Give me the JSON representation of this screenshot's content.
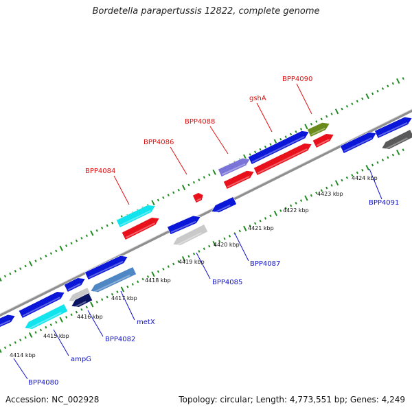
{
  "title": "Bordetella parapertussis 12822, complete genome",
  "footer": {
    "accession": "Accession: NC_002928",
    "topology": "Topology: circular; Length: 4,773,551 bp; Genes: 4,249"
  },
  "colors": {
    "background": "#ffffff",
    "backbone": "#8f8f8f",
    "tick": "#1f8a1f",
    "forward_label": "#e01010",
    "reverse_label": "#1010cc",
    "feature_blue": "#0a16d8",
    "feature_red": "#e8101a",
    "feature_cyan": "#12e4ee",
    "feature_violet": "#7a74d8",
    "feature_olive": "#6a8a1c",
    "feature_steel": "#4f86c4",
    "feature_gray": "#c9c9c9",
    "feature_darkgray": "#5a5a5a",
    "feature_navy": "#0a1460"
  },
  "kbp_ticks": [
    "4414 kbp",
    "4415 kbp",
    "4416 kbp",
    "4417 kbp",
    "4418 kbp",
    "4419 kbp",
    "4420 kbp",
    "4421 kbp",
    "4422 kbp",
    "4423 kbp",
    "4424 kbp"
  ],
  "forward_labels": [
    "BPP4084",
    "BPP4086",
    "BPP4088",
    "gshA",
    "BPP4090"
  ],
  "reverse_labels": [
    "BPP4080",
    "ampG",
    "BPP4082",
    "metX",
    "BPP4085",
    "BPP4087",
    "BPP4091"
  ]
}
